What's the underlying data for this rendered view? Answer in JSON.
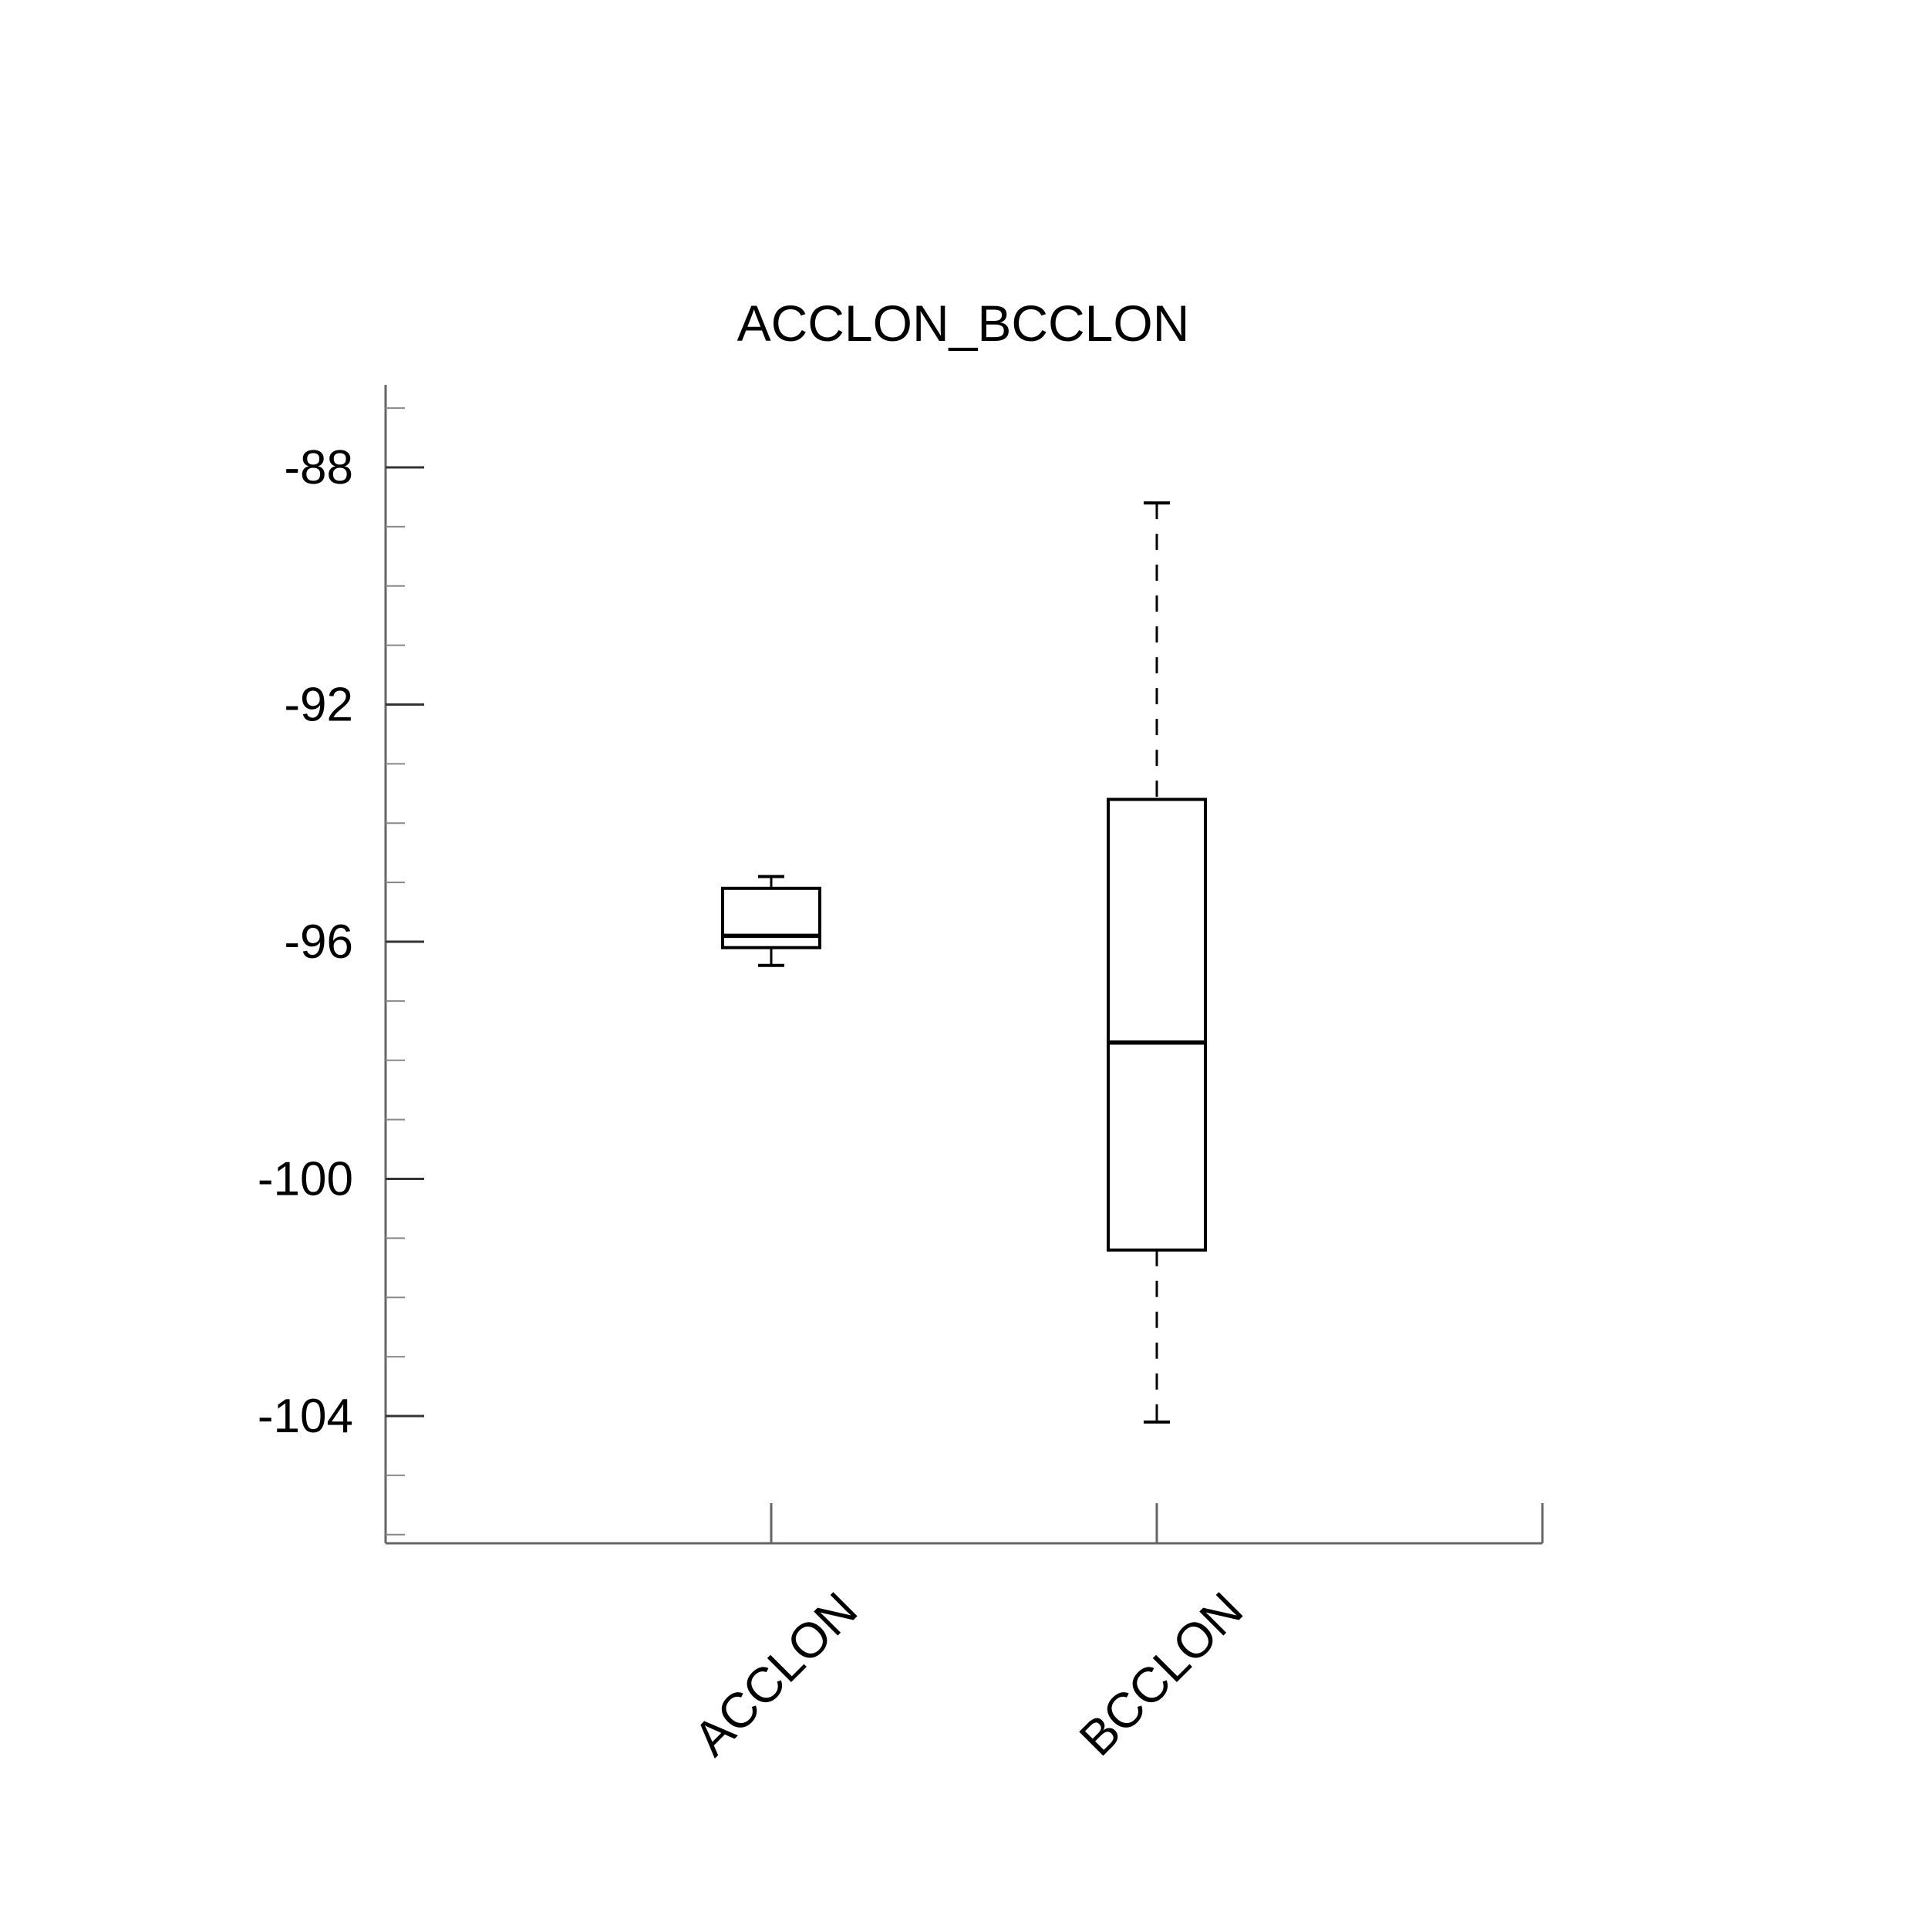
{
  "title": "ACCLON_BCCLON",
  "colors": {
    "background": "#ffffff",
    "box_stroke": "#000000",
    "axis_line": "#666666",
    "major_tick": "#333333",
    "minor_tick": "#888888",
    "text": "#000000"
  },
  "chart_data": {
    "type": "boxplot",
    "title": "ACCLON_BCCLON",
    "categories": [
      "ACCLON",
      "BCCLON"
    ],
    "series": [
      {
        "name": "ACCLON",
        "whisker_low": -96.4,
        "q1": -96.1,
        "median": -95.9,
        "q3": -95.1,
        "whisker_high": -94.9,
        "whisker_style": "solid"
      },
      {
        "name": "BCCLON",
        "whisker_low": -104.1,
        "q1": -101.2,
        "median": -97.7,
        "q3": -93.6,
        "whisker_high": -88.6,
        "whisker_style": "dashed"
      }
    ],
    "y_axis": {
      "major_tick_labels": [
        "-88",
        "-92",
        "-96",
        "-100",
        "-104"
      ],
      "major_tick_values": [
        -88,
        -92,
        -96,
        -100,
        -104
      ],
      "minor_tick_interval": 1,
      "minor_tick_min": -106,
      "minor_tick_max": -87,
      "range_top": -86.6,
      "range_bottom": -106.3,
      "grid": false
    },
    "x_axis": {
      "tick_count": 3,
      "labeled_ticks": [
        "ACCLON",
        "BCCLON"
      ],
      "label_rotation_deg": 45,
      "grid": false
    },
    "legend": null
  }
}
